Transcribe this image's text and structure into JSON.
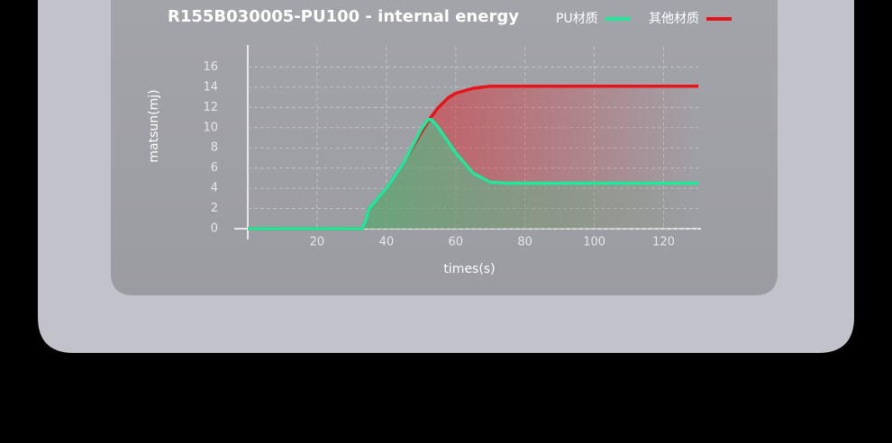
{
  "chart_data": {
    "type": "line",
    "title": "R155B030005-PU100 - internal energy",
    "x_label": "times(s)",
    "y_label": "matsun(mj)",
    "x": [
      0,
      33,
      34,
      35,
      40,
      45,
      50,
      52,
      53,
      55,
      58,
      60,
      65,
      70,
      75,
      80,
      100,
      130
    ],
    "series": [
      {
        "name": "PU材质",
        "color": "#1ee89a",
        "values": [
          0,
          0,
          0.8,
          2,
          4,
          6.5,
          9.8,
          10.8,
          10.8,
          10,
          8.5,
          7.5,
          5.5,
          4.6,
          4.5,
          4.5,
          4.5,
          4.5
        ]
      },
      {
        "name": "其他材质",
        "color": "#e8141c",
        "values": [
          0,
          0,
          0.8,
          2,
          4,
          6.5,
          9.5,
          10.6,
          11.1,
          12,
          13,
          13.4,
          13.9,
          14.1,
          14.1,
          14.1,
          14.1,
          14.1
        ]
      }
    ],
    "xlim": [
      0,
      130
    ],
    "ylim": [
      0,
      18
    ],
    "xticks": [
      20,
      40,
      60,
      80,
      100,
      120
    ],
    "yticks": [
      0,
      2,
      4,
      6,
      8,
      10,
      12,
      14,
      16
    ],
    "grid": true
  }
}
